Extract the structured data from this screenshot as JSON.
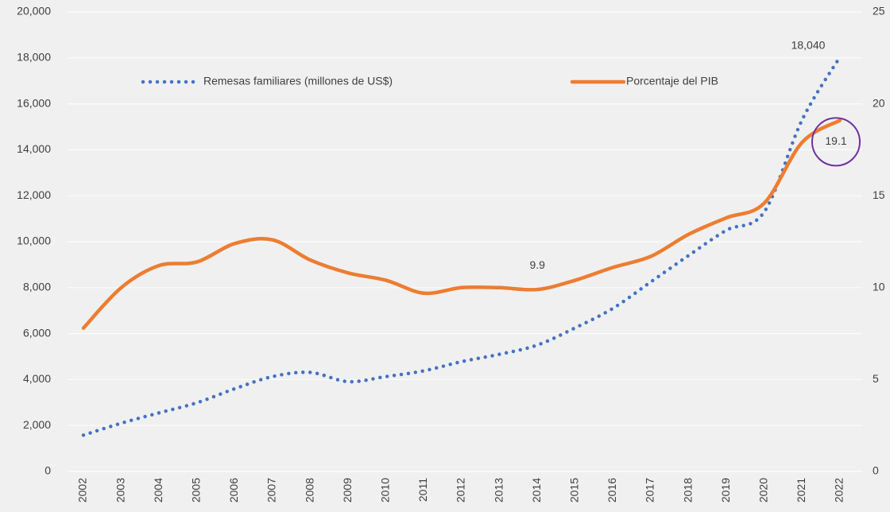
{
  "chart_data": {
    "type": "line",
    "categories": [
      "2002",
      "2003",
      "2004",
      "2005",
      "2006",
      "2007",
      "2008",
      "2009",
      "2010",
      "2011",
      "2012",
      "2013",
      "2014",
      "2015",
      "2016",
      "2017",
      "2018",
      "2019",
      "2020",
      "2021",
      "2022"
    ],
    "series": [
      {
        "name": "Remesas familiares (millones de US$)",
        "color": "#4472c4",
        "style": "dotted",
        "values": [
          1580,
          2100,
          2550,
          2990,
          3600,
          4130,
          4310,
          3910,
          4130,
          4380,
          4780,
          5100,
          5500,
          6250,
          7100,
          8250,
          9400,
          10500,
          11300,
          15300,
          18040
        ],
        "value_labels": [
          null,
          null,
          null,
          null,
          null,
          null,
          null,
          null,
          null,
          null,
          null,
          null,
          null,
          null,
          null,
          null,
          null,
          null,
          null,
          null,
          "18,040"
        ]
      },
      {
        "name": "Porcentaje  del PIB",
        "color": "#ed7d31",
        "style": "solid",
        "axis": "y2",
        "values": [
          7.8,
          10.0,
          11.2,
          11.4,
          12.4,
          12.6,
          11.5,
          10.8,
          10.4,
          9.7,
          10.0,
          10.0,
          9.9,
          10.4,
          11.1,
          11.7,
          12.9,
          13.8,
          14.6,
          17.9,
          19.1
        ],
        "value_labels": [
          null,
          null,
          null,
          null,
          null,
          null,
          null,
          null,
          null,
          null,
          null,
          null,
          "9.9",
          null,
          null,
          null,
          null,
          null,
          null,
          null,
          "19.1"
        ]
      }
    ],
    "ylim": [
      0,
      20000
    ],
    "yticks": [
      0,
      {
        "value": 2000,
        "label": "2,000"
      },
      {
        "value": 4000,
        "label": "4,000"
      },
      {
        "value": 6000,
        "label": "6,000"
      },
      {
        "value": 8000,
        "label": "8,000"
      },
      {
        "value": 10000,
        "label": "10,000"
      },
      {
        "value": 12000,
        "label": "12,000"
      },
      {
        "value": 14000,
        "label": "14,000"
      },
      {
        "value": 16000,
        "label": "16,000"
      },
      {
        "value": 18000,
        "label": "18,000"
      },
      {
        "value": 20000,
        "label": "20,000"
      }
    ],
    "y2lim": [
      0,
      25
    ],
    "y2ticks": [
      0,
      5,
      10,
      15,
      20,
      25
    ],
    "grid": true,
    "legend": "top",
    "smooth": true
  }
}
